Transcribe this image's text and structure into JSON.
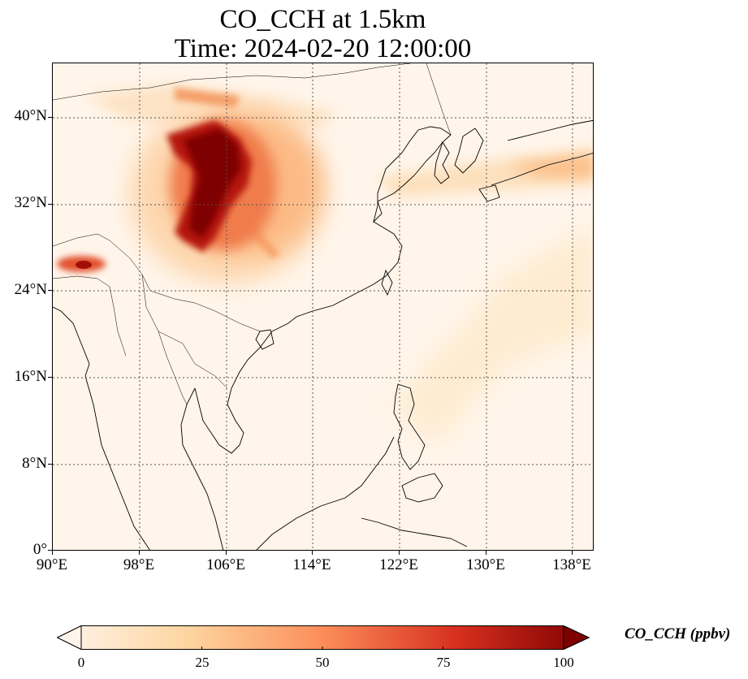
{
  "title_line1": "CO_CCH at 1.5km",
  "title_line2": "Time: 2024-02-20 12:00:00",
  "axes": {
    "y_labels": [
      "40°N",
      "32°N",
      "24°N",
      "16°N",
      "8°N",
      "0°"
    ],
    "x_labels": [
      "90°E",
      "98°E",
      "106°E",
      "114°E",
      "122°E",
      "130°E",
      "138°E"
    ]
  },
  "colorbar": {
    "label": "CO_CCH (ppbv)",
    "ticks": [
      "0",
      "25",
      "50",
      "75",
      "100"
    ],
    "range": [
      0,
      100
    ],
    "extend": "both",
    "colormap": "OrRd",
    "colors": [
      "#fff5eb",
      "#fdd49e",
      "#fc8d59",
      "#d7301f",
      "#7f0000"
    ]
  },
  "map": {
    "lon_range": [
      90,
      140
    ],
    "lat_range": [
      0,
      45
    ],
    "gridlines": "dotted",
    "features": [
      "coastlines",
      "country-borders"
    ]
  }
}
